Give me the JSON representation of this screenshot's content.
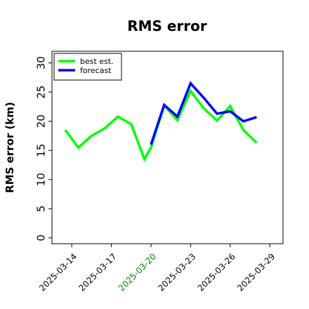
{
  "chart_data": {
    "type": "line",
    "title": "RMS error",
    "ylabel": "RMS error (km)",
    "xlabel": "",
    "ylim": [
      -1,
      32
    ],
    "xlim": [
      "2025-03-12T12:00",
      "2025-03-30T00:00"
    ],
    "yticks": [
      0,
      5,
      10,
      15,
      20,
      25,
      30
    ],
    "xticks": [
      {
        "label": "2025-03-14",
        "date": "2025-03-14",
        "color": "#000000"
      },
      {
        "label": "2025-03-17",
        "date": "2025-03-17",
        "color": "#000000"
      },
      {
        "label": "2025-03-20",
        "date": "2025-03-20",
        "color": "#008000"
      },
      {
        "label": "2025-03-23",
        "date": "2025-03-23",
        "color": "#000000"
      },
      {
        "label": "2025-03-26",
        "date": "2025-03-26",
        "color": "#000000"
      },
      {
        "label": "2025-03-29",
        "date": "2025-03-29",
        "color": "#000000"
      }
    ],
    "grid": false,
    "legend_position": "top-left",
    "series": [
      {
        "name": "best est.",
        "color": "#00ff00",
        "points": [
          {
            "x": "2025-03-13T12:00",
            "y": 18.5
          },
          {
            "x": "2025-03-14T12:00",
            "y": 15.5
          },
          {
            "x": "2025-03-15T12:00",
            "y": 17.5
          },
          {
            "x": "2025-03-16T12:00",
            "y": 18.8
          },
          {
            "x": "2025-03-17T12:00",
            "y": 20.8
          },
          {
            "x": "2025-03-18T12:00",
            "y": 19.5
          },
          {
            "x": "2025-03-19T12:00",
            "y": 13.5
          },
          {
            "x": "2025-03-20T00:00",
            "y": 15.5
          },
          {
            "x": "2025-03-21T00:00",
            "y": 22.7
          },
          {
            "x": "2025-03-22T00:00",
            "y": 20.2
          },
          {
            "x": "2025-03-23T00:00",
            "y": 25.2
          },
          {
            "x": "2025-03-24T00:00",
            "y": 22.2
          },
          {
            "x": "2025-03-25T00:00",
            "y": 20.1
          },
          {
            "x": "2025-03-26T00:00",
            "y": 22.6
          },
          {
            "x": "2025-03-27T00:00",
            "y": 18.5
          },
          {
            "x": "2025-03-28T00:00",
            "y": 16.3
          }
        ]
      },
      {
        "name": "forecast",
        "color": "#0000ff",
        "points": [
          {
            "x": "2025-03-20T00:00",
            "y": 16.0
          },
          {
            "x": "2025-03-21T00:00",
            "y": 22.8
          },
          {
            "x": "2025-03-22T00:00",
            "y": 20.8
          },
          {
            "x": "2025-03-23T00:00",
            "y": 26.5
          },
          {
            "x": "2025-03-24T00:00",
            "y": 24.0
          },
          {
            "x": "2025-03-25T00:00",
            "y": 21.3
          },
          {
            "x": "2025-03-26T00:00",
            "y": 21.7
          },
          {
            "x": "2025-03-27T00:00",
            "y": 20.0
          },
          {
            "x": "2025-03-28T00:00",
            "y": 20.7
          }
        ]
      }
    ]
  }
}
